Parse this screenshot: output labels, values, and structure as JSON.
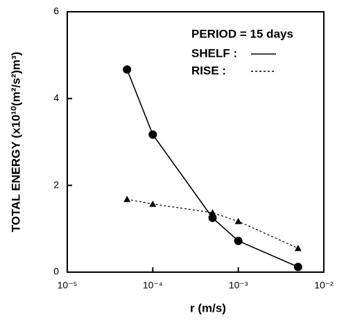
{
  "chart_data": {
    "type": "line",
    "xlabel": "r   (m/s)",
    "ylabel": "TOTAL ENERGY (x10¹⁰(m²/s²)m³)",
    "annotations": [
      "PERIOD = 15 days"
    ],
    "xscale": "log",
    "x": [
      5e-05,
      0.0001,
      0.0005,
      0.001,
      0.005
    ],
    "series": [
      {
        "name": "SHELF :",
        "color": "#000000",
        "marker": "circle",
        "dash": false,
        "values": [
          4.67,
          3.17,
          1.25,
          0.72,
          0.12
        ]
      },
      {
        "name": "RISE :",
        "color": "#000000",
        "marker": "triangle",
        "dash": true,
        "values": [
          1.68,
          1.57,
          1.37,
          1.17,
          0.55
        ]
      }
    ],
    "xlim": [
      1e-05,
      0.01
    ],
    "xticks": [
      {
        "value": 1e-05,
        "label": "10⁻⁵"
      },
      {
        "value": 0.0001,
        "label": "10⁻⁴"
      },
      {
        "value": 0.001,
        "label": "10⁻³"
      },
      {
        "value": 0.01,
        "label": "10⁻²"
      }
    ],
    "ylim": [
      0,
      6
    ],
    "yticks": [
      0,
      2,
      4,
      6
    ],
    "grid": false
  }
}
